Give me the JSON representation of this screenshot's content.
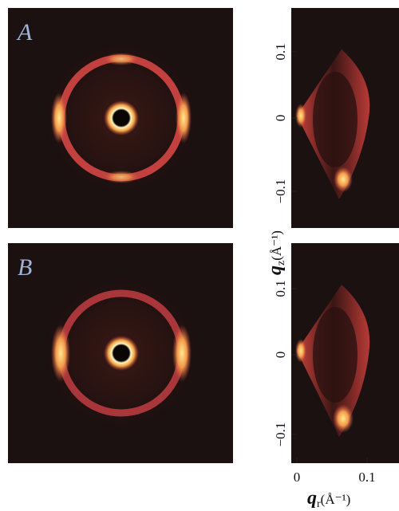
{
  "panels": [
    {
      "label": "A"
    },
    {
      "label": "B"
    }
  ],
  "y_axis": {
    "symbol": "q",
    "subscript": "z",
    "unit": "(Å⁻¹)",
    "ticks": [
      "0.1",
      "0",
      "−0.1"
    ]
  },
  "x_axis": {
    "symbol": "q",
    "subscript": "r",
    "unit": "(Å⁻¹)",
    "ticks": [
      "0",
      "0.1"
    ]
  }
}
